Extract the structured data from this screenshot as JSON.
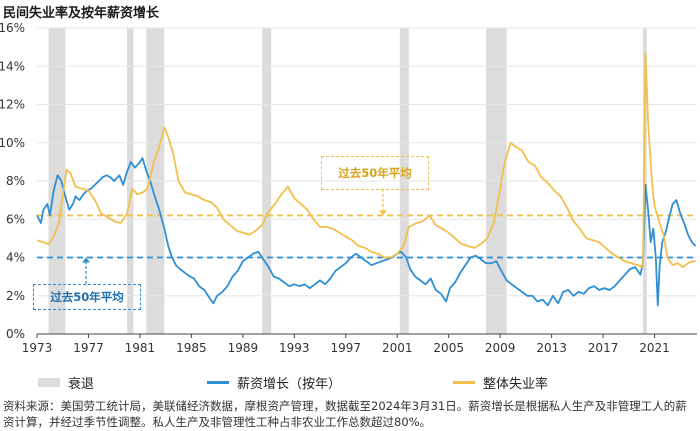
{
  "chart_data": {
    "type": "line",
    "title": "民间失业率及按年薪资增长",
    "x_ticks": [
      "1973",
      "1977",
      "1981",
      "1985",
      "1989",
      "1993",
      "1997",
      "2001",
      "2005",
      "2009",
      "2013",
      "2017",
      "2021"
    ],
    "y_ticks": [
      "0%",
      "2%",
      "4%",
      "6%",
      "8%",
      "10%",
      "12%",
      "14%",
      "16%"
    ],
    "xlim": [
      1973.0,
      2024.3
    ],
    "ylim": [
      0,
      16
    ],
    "recessions": [
      [
        1973.9,
        1975.2
      ],
      [
        1980.0,
        1980.5
      ],
      [
        1981.5,
        1982.9
      ],
      [
        1990.5,
        1991.2
      ],
      [
        2001.2,
        2001.9
      ],
      [
        2007.9,
        2009.5
      ],
      [
        2020.1,
        2020.4
      ]
    ],
    "series": [
      {
        "name": "薪资增长（按年）",
        "color": "#2d8fd5",
        "points": [
          [
            1973.0,
            6.2
          ],
          [
            1973.3,
            5.8
          ],
          [
            1973.5,
            6.5
          ],
          [
            1973.8,
            6.8
          ],
          [
            1974.0,
            6.2
          ],
          [
            1974.3,
            7.5
          ],
          [
            1974.6,
            8.3
          ],
          [
            1974.9,
            8.0
          ],
          [
            1975.2,
            7.2
          ],
          [
            1975.5,
            6.5
          ],
          [
            1975.8,
            6.8
          ],
          [
            1976.0,
            7.2
          ],
          [
            1976.3,
            7.0
          ],
          [
            1976.6,
            7.3
          ],
          [
            1976.9,
            7.5
          ],
          [
            1977.2,
            7.6
          ],
          [
            1977.5,
            7.8
          ],
          [
            1977.8,
            8.0
          ],
          [
            1978.1,
            8.2
          ],
          [
            1978.4,
            8.3
          ],
          [
            1978.7,
            8.2
          ],
          [
            1979.0,
            8.0
          ],
          [
            1979.4,
            8.3
          ],
          [
            1979.7,
            7.8
          ],
          [
            1980.0,
            8.5
          ],
          [
            1980.3,
            9.0
          ],
          [
            1980.6,
            8.7
          ],
          [
            1980.9,
            8.9
          ],
          [
            1981.2,
            9.2
          ],
          [
            1981.5,
            8.5
          ],
          [
            1981.8,
            8.0
          ],
          [
            1982.1,
            7.3
          ],
          [
            1982.5,
            6.5
          ],
          [
            1982.9,
            5.5
          ],
          [
            1983.2,
            4.6
          ],
          [
            1983.5,
            4.0
          ],
          [
            1983.8,
            3.6
          ],
          [
            1984.1,
            3.4
          ],
          [
            1984.5,
            3.2
          ],
          [
            1984.9,
            3.0
          ],
          [
            1985.2,
            2.9
          ],
          [
            1985.6,
            2.5
          ],
          [
            1986.0,
            2.3
          ],
          [
            1986.4,
            1.9
          ],
          [
            1986.7,
            1.6
          ],
          [
            1987.0,
            2.0
          ],
          [
            1987.4,
            2.2
          ],
          [
            1987.8,
            2.5
          ],
          [
            1988.2,
            3.0
          ],
          [
            1988.6,
            3.3
          ],
          [
            1989.0,
            3.8
          ],
          [
            1989.4,
            4.0
          ],
          [
            1989.8,
            4.2
          ],
          [
            1990.2,
            4.3
          ],
          [
            1990.6,
            3.9
          ],
          [
            1991.0,
            3.5
          ],
          [
            1991.4,
            3.0
          ],
          [
            1991.8,
            2.9
          ],
          [
            1992.2,
            2.7
          ],
          [
            1992.6,
            2.5
          ],
          [
            1993.0,
            2.6
          ],
          [
            1993.4,
            2.5
          ],
          [
            1993.8,
            2.6
          ],
          [
            1994.2,
            2.4
          ],
          [
            1994.6,
            2.6
          ],
          [
            1995.0,
            2.8
          ],
          [
            1995.4,
            2.6
          ],
          [
            1995.8,
            2.9
          ],
          [
            1996.2,
            3.3
          ],
          [
            1996.6,
            3.5
          ],
          [
            1997.0,
            3.7
          ],
          [
            1997.4,
            4.0
          ],
          [
            1997.8,
            4.2
          ],
          [
            1998.2,
            4.0
          ],
          [
            1998.6,
            3.8
          ],
          [
            1999.0,
            3.6
          ],
          [
            1999.4,
            3.7
          ],
          [
            1999.8,
            3.8
          ],
          [
            2000.2,
            3.9
          ],
          [
            2000.6,
            4.0
          ],
          [
            2001.0,
            4.2
          ],
          [
            2001.3,
            4.3
          ],
          [
            2001.7,
            4.0
          ],
          [
            2002.0,
            3.4
          ],
          [
            2002.4,
            3.0
          ],
          [
            2002.8,
            2.8
          ],
          [
            2003.2,
            2.6
          ],
          [
            2003.6,
            2.9
          ],
          [
            2004.0,
            2.3
          ],
          [
            2004.4,
            2.1
          ],
          [
            2004.8,
            1.7
          ],
          [
            2005.1,
            2.4
          ],
          [
            2005.5,
            2.7
          ],
          [
            2005.9,
            3.2
          ],
          [
            2006.3,
            3.6
          ],
          [
            2006.7,
            4.0
          ],
          [
            2007.1,
            4.1
          ],
          [
            2007.5,
            3.9
          ],
          [
            2007.9,
            3.7
          ],
          [
            2008.3,
            3.7
          ],
          [
            2008.7,
            3.8
          ],
          [
            2009.1,
            3.3
          ],
          [
            2009.5,
            2.8
          ],
          [
            2009.9,
            2.6
          ],
          [
            2010.3,
            2.4
          ],
          [
            2010.7,
            2.2
          ],
          [
            2011.1,
            2.0
          ],
          [
            2011.5,
            2.0
          ],
          [
            2011.9,
            1.7
          ],
          [
            2012.3,
            1.8
          ],
          [
            2012.7,
            1.5
          ],
          [
            2013.1,
            2.0
          ],
          [
            2013.5,
            1.6
          ],
          [
            2013.9,
            2.2
          ],
          [
            2014.3,
            2.3
          ],
          [
            2014.7,
            2.0
          ],
          [
            2015.1,
            2.2
          ],
          [
            2015.5,
            2.1
          ],
          [
            2015.9,
            2.4
          ],
          [
            2016.3,
            2.5
          ],
          [
            2016.7,
            2.3
          ],
          [
            2017.1,
            2.4
          ],
          [
            2017.5,
            2.3
          ],
          [
            2017.9,
            2.5
          ],
          [
            2018.3,
            2.8
          ],
          [
            2018.7,
            3.1
          ],
          [
            2019.1,
            3.4
          ],
          [
            2019.5,
            3.5
          ],
          [
            2019.9,
            3.1
          ],
          [
            2020.1,
            3.7
          ],
          [
            2020.3,
            7.8
          ],
          [
            2020.5,
            6.5
          ],
          [
            2020.7,
            4.8
          ],
          [
            2020.9,
            5.5
          ],
          [
            2021.1,
            4.0
          ],
          [
            2021.25,
            1.5
          ],
          [
            2021.4,
            3.6
          ],
          [
            2021.6,
            4.8
          ],
          [
            2021.9,
            5.4
          ],
          [
            2022.1,
            6.0
          ],
          [
            2022.4,
            6.8
          ],
          [
            2022.7,
            7.0
          ],
          [
            2023.0,
            6.3
          ],
          [
            2023.3,
            5.8
          ],
          [
            2023.6,
            5.2
          ],
          [
            2023.9,
            4.8
          ],
          [
            2024.2,
            4.6
          ]
        ]
      },
      {
        "name": "整体失业率",
        "color": "#f1c04c",
        "points": [
          [
            1973.0,
            4.9
          ],
          [
            1973.5,
            4.8
          ],
          [
            1973.9,
            4.7
          ],
          [
            1974.3,
            5.1
          ],
          [
            1974.7,
            5.8
          ],
          [
            1975.0,
            7.2
          ],
          [
            1975.3,
            8.6
          ],
          [
            1975.6,
            8.4
          ],
          [
            1976.0,
            7.7
          ],
          [
            1976.5,
            7.6
          ],
          [
            1977.0,
            7.5
          ],
          [
            1977.5,
            7.0
          ],
          [
            1978.0,
            6.3
          ],
          [
            1978.5,
            6.1
          ],
          [
            1979.0,
            5.9
          ],
          [
            1979.5,
            5.8
          ],
          [
            1980.0,
            6.3
          ],
          [
            1980.4,
            7.6
          ],
          [
            1980.8,
            7.3
          ],
          [
            1981.2,
            7.4
          ],
          [
            1981.6,
            7.6
          ],
          [
            1982.0,
            8.8
          ],
          [
            1982.5,
            9.8
          ],
          [
            1982.9,
            10.8
          ],
          [
            1983.2,
            10.3
          ],
          [
            1983.6,
            9.4
          ],
          [
            1984.0,
            8.0
          ],
          [
            1984.5,
            7.4
          ],
          [
            1985.0,
            7.3
          ],
          [
            1985.5,
            7.2
          ],
          [
            1986.0,
            7.0
          ],
          [
            1986.5,
            6.9
          ],
          [
            1987.0,
            6.6
          ],
          [
            1987.5,
            6.0
          ],
          [
            1988.0,
            5.7
          ],
          [
            1988.5,
            5.4
          ],
          [
            1989.0,
            5.3
          ],
          [
            1989.5,
            5.2
          ],
          [
            1990.0,
            5.4
          ],
          [
            1990.5,
            5.7
          ],
          [
            1991.0,
            6.4
          ],
          [
            1991.5,
            6.8
          ],
          [
            1992.0,
            7.3
          ],
          [
            1992.5,
            7.7
          ],
          [
            1993.0,
            7.1
          ],
          [
            1993.5,
            6.8
          ],
          [
            1994.0,
            6.5
          ],
          [
            1994.5,
            6.0
          ],
          [
            1995.0,
            5.6
          ],
          [
            1995.5,
            5.6
          ],
          [
            1996.0,
            5.5
          ],
          [
            1996.5,
            5.3
          ],
          [
            1997.0,
            5.1
          ],
          [
            1997.5,
            4.9
          ],
          [
            1998.0,
            4.6
          ],
          [
            1998.5,
            4.5
          ],
          [
            1999.0,
            4.3
          ],
          [
            1999.5,
            4.2
          ],
          [
            2000.0,
            4.0
          ],
          [
            2000.5,
            4.0
          ],
          [
            2001.0,
            4.2
          ],
          [
            2001.5,
            4.6
          ],
          [
            2001.9,
            5.6
          ],
          [
            2002.5,
            5.8
          ],
          [
            2003.0,
            5.9
          ],
          [
            2003.5,
            6.2
          ],
          [
            2004.0,
            5.7
          ],
          [
            2004.5,
            5.5
          ],
          [
            2005.0,
            5.3
          ],
          [
            2005.5,
            5.0
          ],
          [
            2006.0,
            4.7
          ],
          [
            2006.5,
            4.6
          ],
          [
            2007.0,
            4.5
          ],
          [
            2007.5,
            4.7
          ],
          [
            2008.0,
            5.0
          ],
          [
            2008.5,
            5.8
          ],
          [
            2008.9,
            7.2
          ],
          [
            2009.3,
            8.8
          ],
          [
            2009.8,
            10.0
          ],
          [
            2010.2,
            9.8
          ],
          [
            2010.7,
            9.6
          ],
          [
            2011.2,
            9.0
          ],
          [
            2011.7,
            8.8
          ],
          [
            2012.2,
            8.2
          ],
          [
            2012.7,
            7.9
          ],
          [
            2013.2,
            7.5
          ],
          [
            2013.7,
            7.2
          ],
          [
            2014.2,
            6.6
          ],
          [
            2014.7,
            5.9
          ],
          [
            2015.2,
            5.5
          ],
          [
            2015.7,
            5.0
          ],
          [
            2016.2,
            4.9
          ],
          [
            2016.7,
            4.8
          ],
          [
            2017.2,
            4.5
          ],
          [
            2017.7,
            4.2
          ],
          [
            2018.2,
            4.0
          ],
          [
            2018.7,
            3.8
          ],
          [
            2019.2,
            3.7
          ],
          [
            2019.7,
            3.6
          ],
          [
            2020.1,
            3.5
          ],
          [
            2020.3,
            14.7
          ],
          [
            2020.5,
            11.1
          ],
          [
            2020.8,
            7.9
          ],
          [
            2021.0,
            6.7
          ],
          [
            2021.3,
            6.0
          ],
          [
            2021.7,
            5.2
          ],
          [
            2022.0,
            4.0
          ],
          [
            2022.4,
            3.6
          ],
          [
            2022.8,
            3.7
          ],
          [
            2023.2,
            3.5
          ],
          [
            2023.6,
            3.7
          ],
          [
            2023.9,
            3.8
          ],
          [
            2024.2,
            3.8
          ]
        ]
      }
    ],
    "averages": [
      {
        "label": "过去50年平均",
        "value": 6.2,
        "color": "#f1c04c"
      },
      {
        "label": "过去50年平均",
        "value": 4.0,
        "color": "#2d8fd5"
      }
    ],
    "legend": [
      {
        "label": "衰退",
        "color": "#dcdcdc",
        "kind": "band"
      },
      {
        "label": "薪资增长（按年）",
        "color": "#2d8fd5",
        "kind": "line"
      },
      {
        "label": "整体失业率",
        "color": "#f1c04c",
        "kind": "line"
      }
    ]
  },
  "source": "资料来源：美国劳工统计局，美联储经济数据，摩根资产管理，数据截至2024年3月31日。薪资增长是根据私人生产及非管理工人的薪资计算，并经过季节性调整。私人生产及非管理性工种占非农业工作总数超过80%。"
}
